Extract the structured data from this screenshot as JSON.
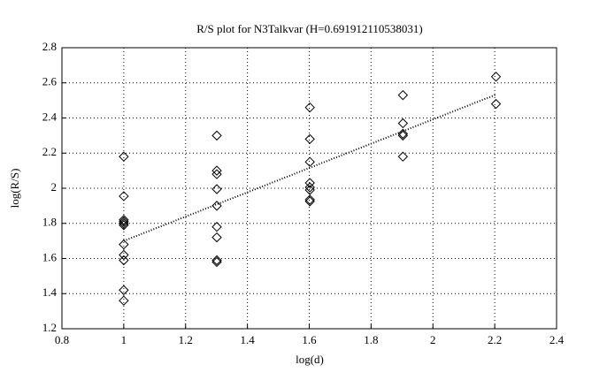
{
  "chart_data": {
    "type": "scatter",
    "title": "R/S plot for N3Talkvar (H=0.691912110538031)",
    "xlabel": "log(d)",
    "ylabel": "log(R/S)",
    "x": [
      1,
      1,
      1,
      1,
      1,
      1,
      1,
      1,
      1,
      1,
      1,
      1.301,
      1.301,
      1.301,
      1.301,
      1.301,
      1.301,
      1.301,
      1.301,
      1.301,
      1.602,
      1.602,
      1.602,
      1.602,
      1.602,
      1.602,
      1.602,
      1.602,
      1.903,
      1.903,
      1.903,
      1.903,
      1.903,
      2.204,
      2.204
    ],
    "values": [
      2.18,
      1.955,
      1.82,
      1.81,
      1.8,
      1.79,
      1.68,
      1.62,
      1.59,
      1.42,
      1.36,
      2.3,
      2.1,
      2.08,
      1.995,
      1.9,
      1.78,
      1.72,
      1.59,
      1.58,
      2.46,
      2.28,
      2.15,
      2.03,
      2.005,
      1.99,
      1.935,
      1.925,
      2.53,
      2.37,
      2.31,
      2.3,
      2.18,
      2.635,
      2.48
    ],
    "color": "#000000",
    "fit": {
      "x": [
        1,
        2.204
      ],
      "values": [
        1.7,
        2.533
      ]
    },
    "xlim": [
      0.8,
      2.4
    ],
    "xticks": [
      0.8,
      1,
      1.2,
      1.4,
      1.6,
      1.8,
      2,
      2.2,
      2.4
    ],
    "ylim": [
      1.2,
      2.8
    ],
    "yticks": [
      1.2,
      1.4,
      1.6,
      1.8,
      2,
      2.2,
      2.4,
      2.6,
      2.8
    ],
    "grid": true
  }
}
